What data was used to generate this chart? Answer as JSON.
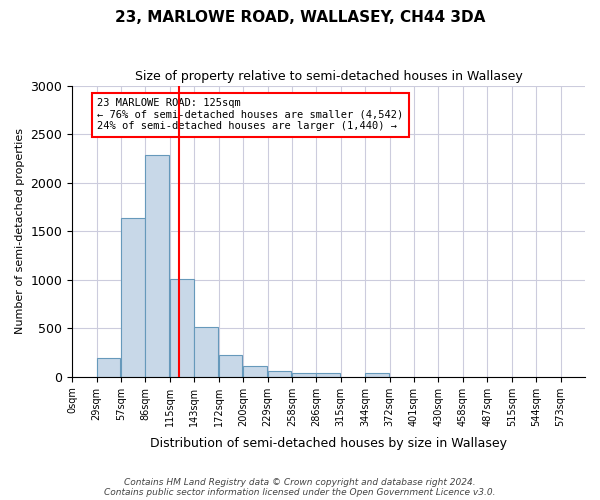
{
  "title": "23, MARLOWE ROAD, WALLASEY, CH44 3DA",
  "subtitle": "Size of property relative to semi-detached houses in Wallasey",
  "xlabel": "Distribution of semi-detached houses by size in Wallasey",
  "ylabel": "Number of semi-detached properties",
  "footer_line1": "Contains HM Land Registry data © Crown copyright and database right 2024.",
  "footer_line2": "Contains public sector information licensed under the Open Government Licence v3.0.",
  "bin_labels": [
    "0sqm",
    "29sqm",
    "57sqm",
    "86sqm",
    "115sqm",
    "143sqm",
    "172sqm",
    "200sqm",
    "229sqm",
    "258sqm",
    "286sqm",
    "315sqm",
    "344sqm",
    "372sqm",
    "401sqm",
    "430sqm",
    "458sqm",
    "487sqm",
    "515sqm",
    "544sqm",
    "573sqm"
  ],
  "bar_heights": [
    0,
    190,
    1640,
    2280,
    1010,
    510,
    220,
    115,
    60,
    40,
    40,
    0,
    40,
    0,
    0,
    0,
    0,
    0,
    0,
    0,
    0
  ],
  "bar_color": "#c8d8e8",
  "bar_edge_color": "#6699bb",
  "grid_color": "#ccccdd",
  "property_line_x": 125,
  "property_line_color": "red",
  "annotation_title": "23 MARLOWE ROAD: 125sqm",
  "annotation_line1": "← 76% of semi-detached houses are smaller (4,542)",
  "annotation_line2": "24% of semi-detached houses are larger (1,440) →",
  "annotation_box_color": "white",
  "annotation_box_edge": "red",
  "ylim": [
    0,
    3000
  ],
  "bin_width": 28.5
}
